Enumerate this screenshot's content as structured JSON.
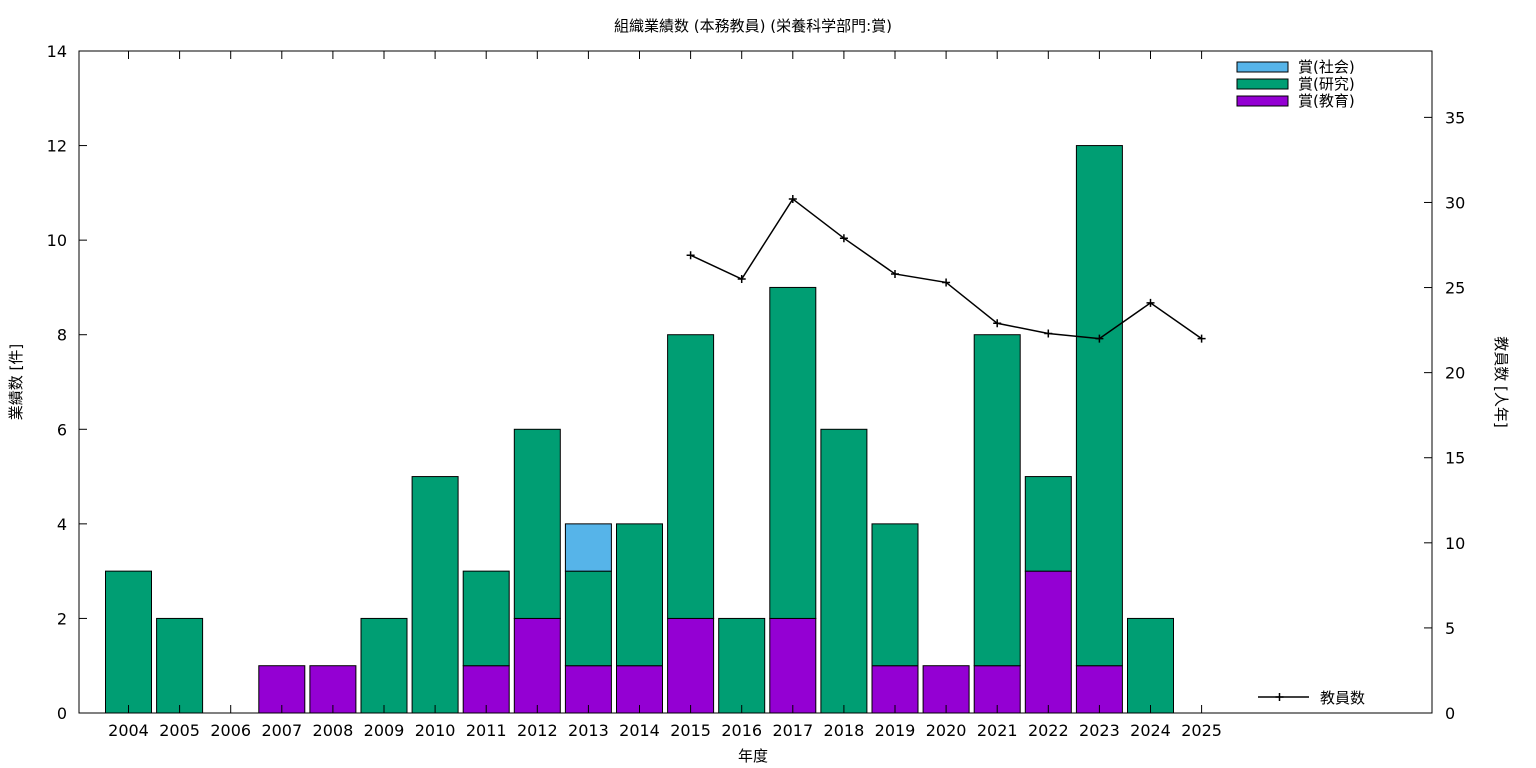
{
  "chart_data": {
    "type": "bar",
    "title": "組織業績数 (本務教員) (栄養科学部門:賞)",
    "xlabel": "年度",
    "ylabel": "業績数 [件]",
    "y2label": "教員数 [人年]",
    "categories": [
      "2004",
      "2005",
      "2006",
      "2007",
      "2008",
      "2009",
      "2010",
      "2011",
      "2012",
      "2013",
      "2014",
      "2015",
      "2016",
      "2017",
      "2018",
      "2019",
      "2020",
      "2021",
      "2022",
      "2023",
      "2024",
      "2025"
    ],
    "stacked": true,
    "ylim": [
      0,
      14
    ],
    "y2lim": [
      0,
      38.9
    ],
    "yticks": [
      0,
      2,
      4,
      6,
      8,
      10,
      12,
      14
    ],
    "y2ticks": [
      0,
      5,
      10,
      15,
      20,
      25,
      30,
      35
    ],
    "series": [
      {
        "name": "賞(教育)",
        "color": "#9400d3",
        "values": [
          0,
          0,
          0,
          1,
          1,
          0,
          0,
          1,
          2,
          1,
          1,
          2,
          0,
          2,
          0,
          1,
          1,
          1,
          3,
          1,
          0,
          0
        ]
      },
      {
        "name": "賞(研究)",
        "color": "#009e73",
        "values": [
          3,
          2,
          0,
          0,
          0,
          2,
          5,
          2,
          4,
          2,
          3,
          6,
          2,
          7,
          6,
          3,
          0,
          7,
          2,
          11,
          2,
          0
        ]
      },
      {
        "name": "賞(社会)",
        "color": "#56b4e9",
        "values": [
          0,
          0,
          0,
          0,
          0,
          0,
          0,
          0,
          0,
          1,
          0,
          0,
          0,
          0,
          0,
          0,
          0,
          0,
          0,
          0,
          0,
          0
        ]
      }
    ],
    "legend_order": [
      "賞(社会)",
      "賞(研究)",
      "賞(教育)"
    ],
    "line_series": {
      "name": "教員数",
      "color": "#000000",
      "axis": "right",
      "x": [
        "2015",
        "2016",
        "2017",
        "2018",
        "2019",
        "2020",
        "2021",
        "2022",
        "2023",
        "2024",
        "2025"
      ],
      "values": [
        26.9,
        25.5,
        30.2,
        27.9,
        25.8,
        25.3,
        22.9,
        22.3,
        22.0,
        24.1,
        22.0
      ]
    },
    "legend_placement": "top-right",
    "grid": false
  }
}
